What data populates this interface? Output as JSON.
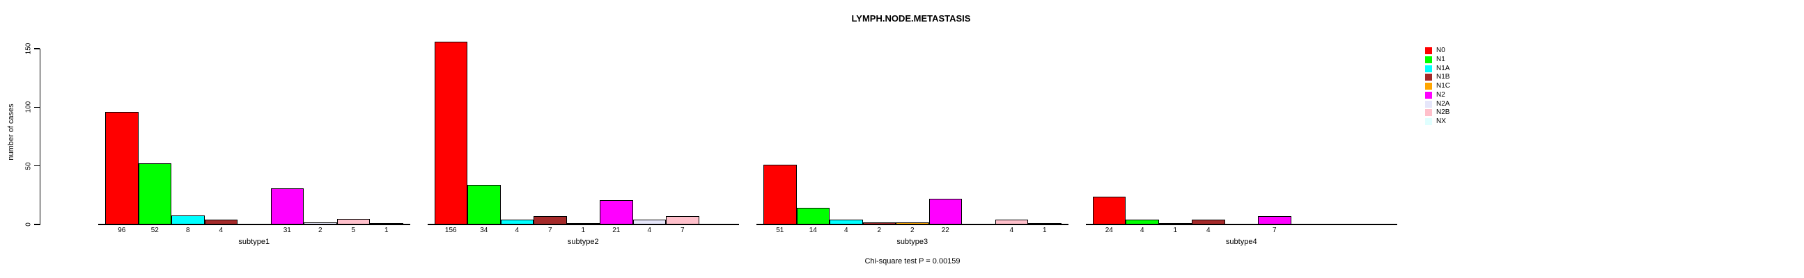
{
  "header": {
    "title": "LYMPH.NODE.METASTASIS"
  },
  "footnote": "Chi-square test P = 0.00159",
  "y_axis": {
    "label": "number of cases",
    "ticks": [
      0,
      50,
      100,
      150
    ]
  },
  "chart_data": {
    "type": "bar",
    "title": "LYMPH.NODE.METASTASIS",
    "xlabel": "",
    "ylabel": "number of cases",
    "ylim": [
      0,
      160
    ],
    "yticks": [
      0,
      50,
      100,
      150
    ],
    "grid": false,
    "legend_position": "right",
    "categories": [
      "subtype1",
      "subtype2",
      "subtype3",
      "subtype4"
    ],
    "series": [
      {
        "name": "N0",
        "color": "#FF0000",
        "values": [
          96,
          156,
          51,
          24
        ]
      },
      {
        "name": "N1",
        "color": "#00FF00",
        "values": [
          52,
          34,
          14,
          4
        ]
      },
      {
        "name": "N1A",
        "color": "#00FFFF",
        "values": [
          8,
          4,
          4,
          1
        ]
      },
      {
        "name": "N1B",
        "color": "#A52A2A",
        "values": [
          4,
          7,
          2,
          4
        ]
      },
      {
        "name": "N1C",
        "color": "#FFA500",
        "values": [
          0,
          1,
          2,
          0
        ]
      },
      {
        "name": "N2",
        "color": "#FF00FF",
        "values": [
          31,
          21,
          22,
          7
        ]
      },
      {
        "name": "N2A",
        "color": "#E6E6FA",
        "values": [
          2,
          4,
          0,
          0
        ]
      },
      {
        "name": "N2B",
        "color": "#FFC0CB",
        "values": [
          5,
          7,
          4,
          0
        ]
      },
      {
        "name": "NX",
        "color": "#E0FFFF",
        "values": [
          1,
          0,
          1,
          0
        ]
      }
    ],
    "footnote": "Chi-square test P = 0.00159"
  }
}
